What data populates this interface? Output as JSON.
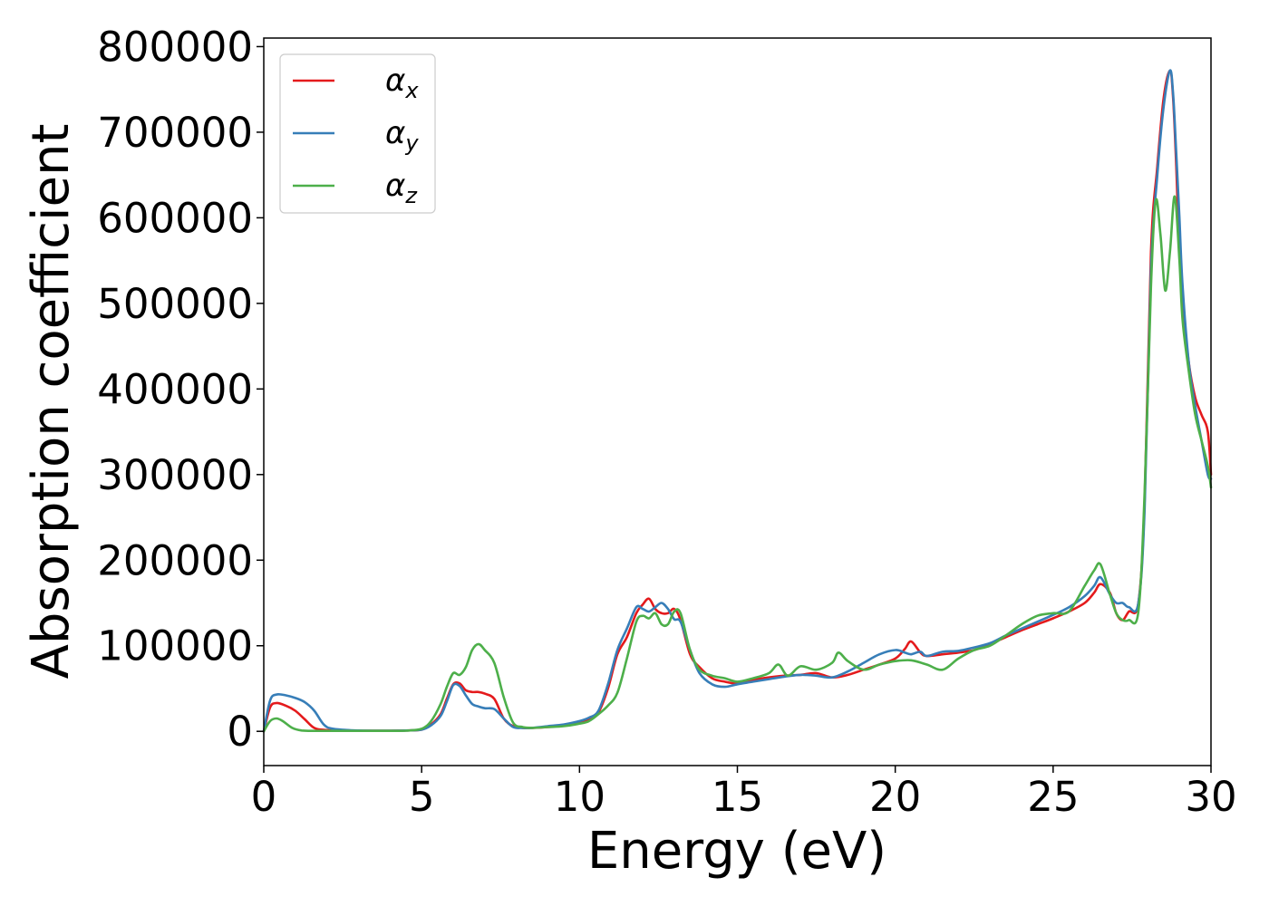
{
  "chart_data": {
    "type": "line",
    "xlabel": "Energy (eV)",
    "ylabel": "Absorption coefficient",
    "xlim": [
      0,
      30
    ],
    "ylim": [
      -40000,
      810000
    ],
    "xticks": [
      0,
      5,
      10,
      15,
      20,
      25,
      30
    ],
    "yticks": [
      0,
      100000,
      200000,
      300000,
      400000,
      500000,
      600000,
      700000,
      800000
    ],
    "grid": false,
    "legend_position": "top-left",
    "series": [
      {
        "name": "α",
        "subscript": "x",
        "color": "#e41a1c",
        "x": [
          0,
          0.2,
          0.4,
          0.7,
          1.0,
          1.3,
          1.6,
          2.0,
          3.0,
          4.0,
          4.5,
          5.0,
          5.3,
          5.6,
          5.8,
          6.0,
          6.2,
          6.4,
          6.6,
          6.8,
          7.0,
          7.3,
          7.6,
          7.9,
          8.2,
          8.5,
          9.0,
          9.5,
          10.0,
          10.3,
          10.6,
          10.9,
          11.2,
          11.5,
          11.8,
          12.0,
          12.2,
          12.4,
          12.6,
          12.8,
          13.0,
          13.2,
          13.5,
          13.8,
          14.2,
          14.6,
          15.0,
          15.5,
          16.0,
          16.5,
          17.0,
          17.5,
          18.0,
          18.5,
          19.0,
          19.5,
          20.0,
          20.3,
          20.5,
          20.8,
          21.0,
          21.5,
          22.0,
          22.5,
          23.0,
          23.5,
          24.0,
          24.5,
          25.0,
          25.5,
          26.0,
          26.3,
          26.5,
          26.8,
          27.0,
          27.2,
          27.4,
          27.7,
          27.9,
          28.1,
          28.3,
          28.5,
          28.7,
          28.8,
          28.9,
          29.0,
          29.1,
          29.3,
          29.5,
          29.7,
          29.9,
          30.0
        ],
        "values": [
          0,
          28000,
          33000,
          30000,
          24000,
          14000,
          4000,
          1500,
          800,
          800,
          1000,
          2000,
          8000,
          20000,
          38000,
          55000,
          56000,
          48000,
          46000,
          46000,
          44000,
          38000,
          15000,
          6000,
          4000,
          4000,
          5000,
          7000,
          10000,
          14000,
          22000,
          50000,
          90000,
          110000,
          138000,
          148000,
          155000,
          143000,
          138000,
          138000,
          143000,
          130000,
          90000,
          75000,
          62000,
          58000,
          56000,
          60000,
          63000,
          65000,
          66000,
          68000,
          63000,
          66000,
          72000,
          78000,
          85000,
          96000,
          105000,
          92000,
          88000,
          90000,
          92000,
          95000,
          102000,
          110000,
          118000,
          125000,
          132000,
          140000,
          150000,
          162000,
          172000,
          162000,
          138000,
          130000,
          140000,
          150000,
          270000,
          560000,
          660000,
          740000,
          772000,
          740000,
          660000,
          560000,
          500000,
          430000,
          390000,
          370000,
          350000,
          300000
        ]
      },
      {
        "name": "α",
        "subscript": "y",
        "color": "#377eb8",
        "x": [
          0,
          0.2,
          0.4,
          0.7,
          1.0,
          1.3,
          1.6,
          1.9,
          2.2,
          3.0,
          4.0,
          4.5,
          5.0,
          5.3,
          5.6,
          5.8,
          6.0,
          6.2,
          6.4,
          6.6,
          6.8,
          7.0,
          7.3,
          7.6,
          7.9,
          8.2,
          8.5,
          9.0,
          9.5,
          10.0,
          10.3,
          10.6,
          10.9,
          11.2,
          11.5,
          11.8,
          12.0,
          12.2,
          12.4,
          12.6,
          12.8,
          13.0,
          13.2,
          13.5,
          13.8,
          14.2,
          14.6,
          15.0,
          15.5,
          16.0,
          16.5,
          17.0,
          17.5,
          18.0,
          18.5,
          19.0,
          19.5,
          20.0,
          20.3,
          20.5,
          20.8,
          21.0,
          21.5,
          22.0,
          22.5,
          23.0,
          23.5,
          24.0,
          24.5,
          25.0,
          25.5,
          26.0,
          26.3,
          26.5,
          26.8,
          27.0,
          27.2,
          27.4,
          27.7,
          27.9,
          28.1,
          28.3,
          28.5,
          28.7,
          28.8,
          28.9,
          29.0,
          29.1,
          29.3,
          29.5,
          29.7,
          29.9,
          30.0
        ],
        "values": [
          0,
          36000,
          43000,
          42000,
          39000,
          34000,
          24000,
          8000,
          3000,
          1000,
          800,
          1000,
          2000,
          7000,
          18000,
          35000,
          54000,
          53000,
          42000,
          32000,
          29000,
          27000,
          26000,
          15000,
          5000,
          4000,
          4000,
          6000,
          8000,
          12000,
          16000,
          24000,
          55000,
          95000,
          120000,
          145000,
          143000,
          140000,
          145000,
          150000,
          143000,
          131000,
          128000,
          95000,
          68000,
          55000,
          52000,
          55000,
          58000,
          61000,
          64000,
          66000,
          65000,
          63000,
          70000,
          80000,
          90000,
          95000,
          92000,
          90000,
          93000,
          88000,
          93000,
          94000,
          98000,
          103000,
          112000,
          120000,
          128000,
          136000,
          145000,
          158000,
          170000,
          180000,
          160000,
          150000,
          150000,
          145000,
          150000,
          260000,
          540000,
          650000,
          730000,
          772000,
          745000,
          675000,
          600000,
          520000,
          430000,
          380000,
          340000,
          300000,
          295000
        ]
      },
      {
        "name": "α",
        "subscript": "z",
        "color": "#4daf4a",
        "x": [
          0,
          0.2,
          0.4,
          0.6,
          0.9,
          1.2,
          1.6,
          2.0,
          3.0,
          4.0,
          4.5,
          5.0,
          5.3,
          5.6,
          5.8,
          6.0,
          6.2,
          6.4,
          6.6,
          6.8,
          7.0,
          7.3,
          7.6,
          7.9,
          8.2,
          8.5,
          9.0,
          9.5,
          10.0,
          10.3,
          10.6,
          10.9,
          11.2,
          11.5,
          11.8,
          12.0,
          12.2,
          12.4,
          12.6,
          12.8,
          13.0,
          13.2,
          13.5,
          13.8,
          14.2,
          14.6,
          15.0,
          15.5,
          16.0,
          16.3,
          16.6,
          17.0,
          17.5,
          18.0,
          18.2,
          18.5,
          19.0,
          19.5,
          20.0,
          20.5,
          21.0,
          21.5,
          22.0,
          22.5,
          23.0,
          23.5,
          24.0,
          24.5,
          25.0,
          25.5,
          26.0,
          26.3,
          26.5,
          26.8,
          27.0,
          27.2,
          27.4,
          27.7,
          27.9,
          28.1,
          28.25,
          28.4,
          28.55,
          28.7,
          28.85,
          29.0,
          29.1,
          29.3,
          29.5,
          29.7,
          29.9,
          30.0
        ],
        "values": [
          0,
          12000,
          15000,
          12000,
          4000,
          1000,
          500,
          500,
          500,
          500,
          800,
          3000,
          12000,
          32000,
          52000,
          68000,
          66000,
          75000,
          95000,
          102000,
          95000,
          80000,
          40000,
          10000,
          5000,
          4000,
          5000,
          6000,
          9000,
          12000,
          20000,
          30000,
          45000,
          85000,
          128000,
          135000,
          132000,
          138000,
          125000,
          125000,
          140000,
          138000,
          95000,
          72000,
          65000,
          62000,
          58000,
          62000,
          68000,
          78000,
          65000,
          76000,
          72000,
          80000,
          92000,
          82000,
          72000,
          78000,
          82000,
          83000,
          78000,
          72000,
          85000,
          95000,
          100000,
          112000,
          125000,
          135000,
          138000,
          140000,
          170000,
          188000,
          195000,
          160000,
          138000,
          130000,
          130000,
          140000,
          280000,
          520000,
          620000,
          580000,
          515000,
          560000,
          625000,
          550000,
          480000,
          420000,
          370000,
          340000,
          310000,
          285000
        ]
      }
    ]
  }
}
